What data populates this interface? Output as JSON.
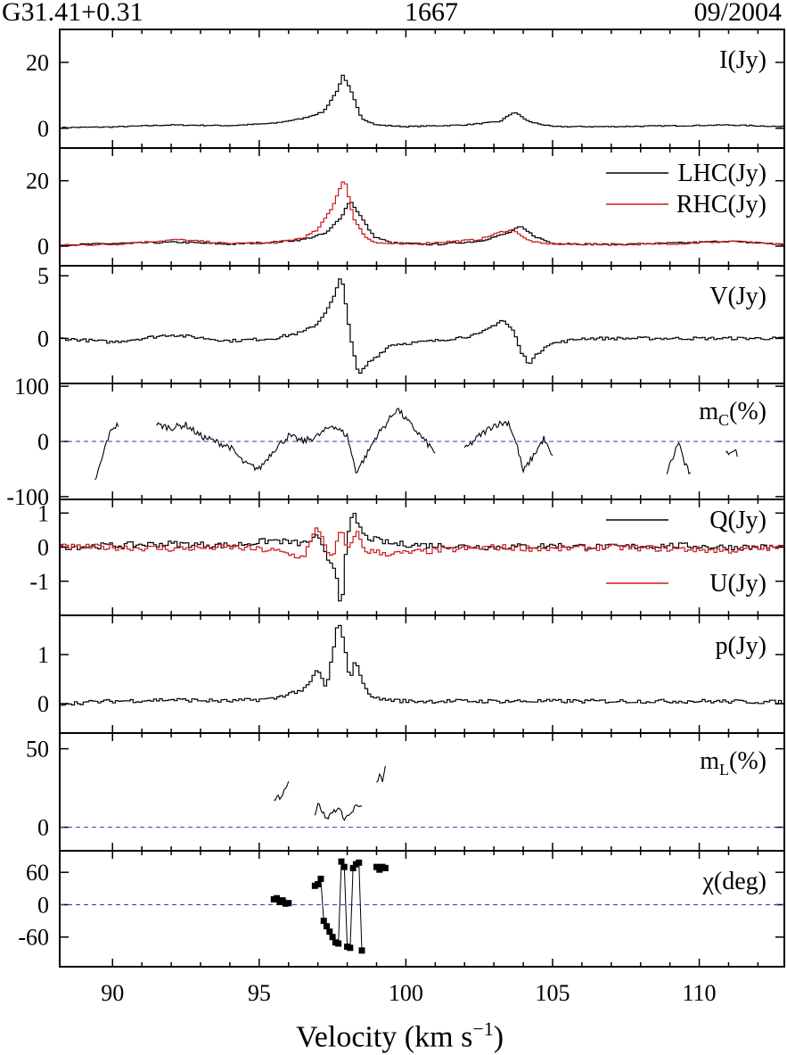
{
  "header": {
    "source": "G31.41+0.31",
    "line": "1667",
    "date": "09/2004"
  },
  "xaxis": {
    "label": "Velocity (km s",
    "label_sup": "−1",
    "label_close": ")",
    "ticks": [
      "90",
      "95",
      "100",
      "105",
      "110"
    ]
  },
  "colors": {
    "primary": "#000000",
    "secondary": "#cc1a1a",
    "zero_line": "#3a3aa8"
  },
  "chart_data": [
    {
      "type": "line",
      "panel": "I",
      "title": "I(Jy)",
      "xlim": [
        88.2,
        112.9
      ],
      "ylim": [
        -6,
        30
      ],
      "yticks": [
        "20",
        "0"
      ],
      "zero_line": false,
      "step": true,
      "series": [
        {
          "x": [
            88.2,
            90,
            92,
            94,
            95.5,
            96.5,
            97.2,
            97.7,
            97.85,
            98.1,
            98.5,
            99.0,
            100,
            102,
            103.2,
            103.7,
            104.2,
            105,
            107,
            109.5,
            111,
            112.9
          ],
          "y": [
            0.2,
            0.4,
            1.0,
            0.8,
            1.5,
            3.0,
            5.0,
            12.0,
            16.0,
            12.0,
            3.0,
            1.0,
            0.5,
            1.0,
            2.0,
            5.0,
            2.0,
            0.5,
            0.5,
            0.8,
            1.0,
            0.5
          ]
        }
      ]
    },
    {
      "type": "line",
      "panel": "LHC_RHC",
      "title": "",
      "xlim": [
        88.2,
        112.9
      ],
      "ylim": [
        -6,
        30
      ],
      "yticks": [
        "20",
        "0"
      ],
      "zero_line": false,
      "step": true,
      "legend": [
        "LHC(Jy)",
        "RHC(Jy)"
      ],
      "series": [
        {
          "name": "LHC(Jy)",
          "x": [
            88.2,
            90,
            92.2,
            94,
            95.5,
            96.5,
            97.3,
            97.8,
            98.1,
            98.4,
            98.9,
            99.5,
            101,
            102.5,
            103.5,
            103.9,
            104.4,
            105,
            107,
            109.5,
            111,
            112.9
          ],
          "y": [
            0.3,
            0.8,
            1.2,
            0.6,
            1.2,
            2.0,
            4.0,
            9.0,
            14.0,
            10.0,
            3.0,
            1.0,
            0.5,
            1.5,
            4.0,
            6.0,
            3.0,
            0.8,
            0.5,
            1.0,
            1.5,
            0.5
          ]
        },
        {
          "name": "RHC(Jy)",
          "x": [
            88.2,
            90,
            92.2,
            94,
            95.5,
            96.5,
            97.0,
            97.5,
            97.9,
            98.2,
            98.6,
            99.0,
            100,
            102.5,
            103.3,
            103.7,
            104.1,
            104.6,
            107,
            109.5,
            111,
            112.9
          ],
          "y": [
            0.3,
            0.5,
            2.0,
            0.8,
            1.0,
            2.5,
            5.0,
            12.0,
            21.0,
            9.0,
            3.0,
            1.0,
            0.5,
            2.0,
            4.5,
            5.0,
            2.0,
            0.8,
            0.5,
            0.8,
            1.5,
            0.5
          ]
        }
      ]
    },
    {
      "type": "line",
      "panel": "V",
      "title": "V(Jy)",
      "xlim": [
        88.2,
        112.9
      ],
      "ylim": [
        -3.6,
        5.8
      ],
      "yticks": [
        "5",
        "0"
      ],
      "zero_line": false,
      "step": true,
      "series": [
        {
          "x": [
            88.2,
            90,
            92,
            94,
            95.5,
            96.5,
            97.0,
            97.5,
            97.8,
            98.0,
            98.2,
            98.4,
            98.7,
            99.5,
            101,
            102.5,
            103.3,
            103.7,
            103.9,
            104.2,
            104.8,
            106,
            108,
            110,
            112.9
          ],
          "y": [
            0.0,
            -0.3,
            0.3,
            -0.2,
            0.0,
            0.5,
            1.2,
            3.0,
            5.0,
            2.0,
            -1.0,
            -3.0,
            -2.0,
            -0.5,
            -0.2,
            0.3,
            1.5,
            0.5,
            -1.0,
            -2.0,
            -0.5,
            0.0,
            0.0,
            0.0,
            0.0
          ]
        }
      ]
    },
    {
      "type": "line",
      "panel": "mC",
      "title": "m",
      "title_sub": "C",
      "title_suffix": "(%)",
      "xlim": [
        88.2,
        112.9
      ],
      "ylim": [
        -105,
        105
      ],
      "yticks": [
        "100",
        "0",
        "-100"
      ],
      "zero_line": true,
      "step": false,
      "segments": [
        {
          "x": [
            89.4,
            89.6,
            89.8,
            90.0,
            90.2
          ],
          "y": [
            -72,
            -40,
            0,
            25,
            30
          ]
        },
        {
          "x": [
            91.5,
            92.0,
            92.5,
            93.0,
            93.5,
            94.0,
            94.5,
            95.0,
            95.5,
            96.0,
            96.5,
            97.0,
            97.5,
            98.0,
            98.3,
            98.6,
            99.0,
            99.3,
            99.7,
            100.0,
            100.5,
            101.0
          ],
          "y": [
            30,
            25,
            30,
            10,
            0,
            -10,
            -40,
            -50,
            -15,
            10,
            0,
            10,
            30,
            10,
            -55,
            -30,
            10,
            30,
            60,
            40,
            10,
            -20
          ]
        },
        {
          "x": [
            102.0,
            102.5,
            103.0,
            103.5,
            103.8,
            104.0,
            104.3,
            104.7,
            105.0
          ],
          "y": [
            -15,
            10,
            30,
            35,
            -10,
            -55,
            -30,
            5,
            -30
          ]
        },
        {
          "x": [
            108.9,
            109.1,
            109.3,
            109.5,
            109.7
          ],
          "y": [
            -55,
            -30,
            0,
            -40,
            -60
          ]
        },
        {
          "x": [
            110.9,
            111.1,
            111.3
          ],
          "y": [
            -25,
            -15,
            -22
          ]
        }
      ]
    },
    {
      "type": "line",
      "panel": "Q_U",
      "title": "",
      "xlim": [
        88.2,
        112.9
      ],
      "ylim": [
        -2.0,
        1.4
      ],
      "yticks": [
        "1",
        "0",
        "-1"
      ],
      "zero_line": false,
      "step": true,
      "legend": [
        "Q(Jy)",
        "U(Jy)"
      ],
      "series": [
        {
          "name": "Q(Jy)",
          "x": [
            88.2,
            90,
            92,
            94,
            95.5,
            96.5,
            97.0,
            97.3,
            97.6,
            97.8,
            98.0,
            98.2,
            98.6,
            99.5,
            101,
            103,
            105,
            107,
            109,
            111,
            112.9
          ],
          "y": [
            0.0,
            0.05,
            0.1,
            0.05,
            0.2,
            0.1,
            0.3,
            -0.3,
            -0.6,
            -1.8,
            0.2,
            1.0,
            0.3,
            0.1,
            0.05,
            0.0,
            0.05,
            0.0,
            0.05,
            0.0,
            0.0
          ]
        },
        {
          "name": "U(Jy)",
          "x": [
            88.2,
            90,
            92,
            94,
            95.5,
            96.5,
            97.0,
            97.2,
            97.5,
            97.8,
            98.0,
            98.3,
            98.6,
            99.5,
            101,
            103,
            105,
            107,
            109,
            111,
            112.9
          ],
          "y": [
            0.0,
            0.0,
            -0.05,
            0.0,
            -0.1,
            -0.3,
            0.6,
            0.2,
            -0.4,
            0.6,
            -0.2,
            0.5,
            -0.1,
            -0.2,
            -0.1,
            0.0,
            -0.05,
            0.0,
            -0.05,
            -0.1,
            0.0
          ]
        }
      ]
    },
    {
      "type": "line",
      "panel": "p",
      "title": "p(Jy)",
      "xlim": [
        88.2,
        112.9
      ],
      "ylim": [
        -0.6,
        1.8
      ],
      "yticks": [
        "1",
        "0"
      ],
      "zero_line": false,
      "step": true,
      "series": [
        {
          "x": [
            88.2,
            90,
            92,
            94,
            95.5,
            96.0,
            96.6,
            97.0,
            97.3,
            97.7,
            97.9,
            98.1,
            98.3,
            98.6,
            99.0,
            100,
            102,
            104,
            106,
            108,
            110,
            112.9
          ],
          "y": [
            0.0,
            0.05,
            0.08,
            0.05,
            0.1,
            0.2,
            0.3,
            0.7,
            0.3,
            1.7,
            1.2,
            0.5,
            0.9,
            0.3,
            0.1,
            0.05,
            0.05,
            0.05,
            0.05,
            0.05,
            0.05,
            0.03
          ]
        }
      ]
    },
    {
      "type": "line",
      "panel": "mL",
      "title": "m",
      "title_sub": "L",
      "title_suffix": "(%)",
      "xlim": [
        88.2,
        112.9
      ],
      "ylim": [
        -15,
        60
      ],
      "yticks": [
        "50",
        "0"
      ],
      "zero_line": true,
      "step": false,
      "segments": [
        {
          "x": [
            95.5,
            95.6,
            95.7,
            95.8,
            95.9,
            96.0
          ],
          "y": [
            17,
            20,
            19,
            22,
            25,
            30
          ]
        },
        {
          "x": [
            96.9,
            97.0,
            97.1,
            97.3,
            97.5,
            97.7,
            97.9,
            98.1,
            98.3,
            98.5
          ],
          "y": [
            8,
            15,
            12,
            5,
            10,
            12,
            6,
            8,
            14,
            12
          ]
        },
        {
          "x": [
            99.0,
            99.1,
            99.2,
            99.3
          ],
          "y": [
            28,
            33,
            30,
            38
          ]
        }
      ]
    },
    {
      "type": "scatter",
      "panel": "chi",
      "title": "χ(deg)",
      "xlim": [
        88.2,
        112.9
      ],
      "ylim": [
        -115,
        100
      ],
      "yticks": [
        "60",
        "0",
        "-60"
      ],
      "zero_line": true,
      "x": [
        95.5,
        95.6,
        95.7,
        95.8,
        95.9,
        96.0,
        96.9,
        97.0,
        97.1,
        97.2,
        97.3,
        97.4,
        97.5,
        97.6,
        97.7,
        97.8,
        97.9,
        98.0,
        98.1,
        98.2,
        98.3,
        98.4,
        98.5,
        99.0,
        99.1,
        99.2,
        99.3
      ],
      "y": [
        10,
        12,
        5,
        8,
        2,
        3,
        35,
        38,
        48,
        -30,
        -40,
        -50,
        -60,
        -70,
        -72,
        80,
        70,
        -78,
        -80,
        68,
        75,
        78,
        -85,
        70,
        65,
        70,
        68
      ]
    }
  ]
}
